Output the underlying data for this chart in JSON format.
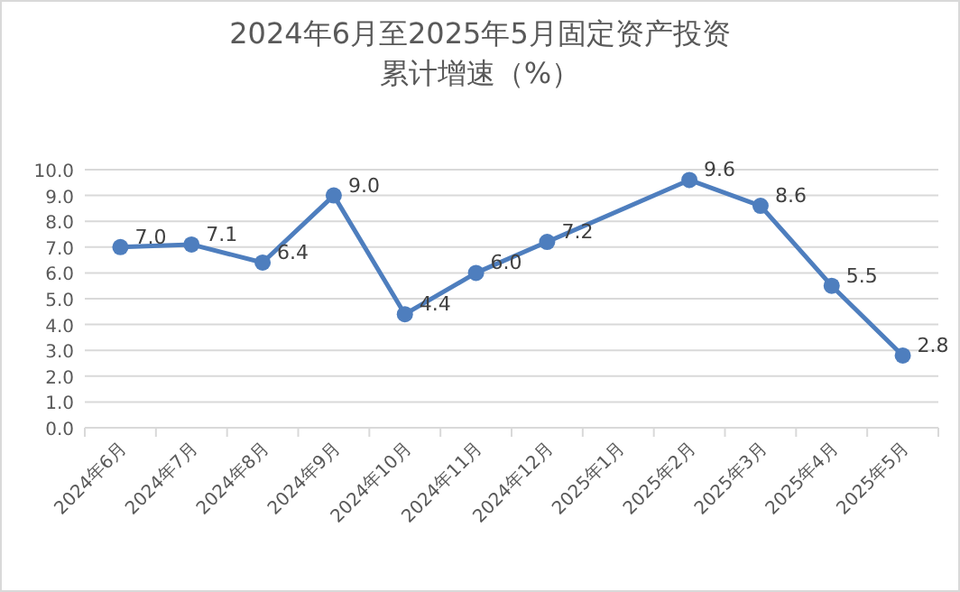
{
  "chart_data": {
    "type": "line",
    "title": "2024年6月至2025年5月固定资产投资累计增速（%）",
    "categories": [
      "2024年6月",
      "2024年7月",
      "2024年8月",
      "2024年9月",
      "2024年10月",
      "2024年11月",
      "2024年12月",
      "2025年1月",
      "2025年2月",
      "2025年3月",
      "2025年4月",
      "2025年5月"
    ],
    "series": [
      {
        "color": "#4e7ebe",
        "values": [
          7.0,
          7.1,
          6.4,
          9.0,
          4.4,
          6.0,
          7.2,
          null,
          9.6,
          8.6,
          5.5,
          2.8
        ],
        "value_labels": [
          "7.0",
          "7.1",
          "6.4",
          "9.0",
          "4.4",
          "6.0",
          "7.2",
          null,
          "9.6",
          "8.6",
          "5.5",
          "2.8"
        ]
      }
    ],
    "ylim": [
      0,
      10
    ],
    "yticks": [
      {
        "value": 0,
        "label": "0.0"
      },
      {
        "value": 1,
        "label": "1.0"
      },
      {
        "value": 2,
        "label": "2.0"
      },
      {
        "value": 3,
        "label": "3.0"
      },
      {
        "value": 4,
        "label": "4.0"
      },
      {
        "value": 5,
        "label": "5.0"
      },
      {
        "value": 6,
        "label": "6.0"
      },
      {
        "value": 7,
        "label": "7.0"
      },
      {
        "value": 8,
        "label": "8.0"
      },
      {
        "value": 9,
        "label": "9.0"
      },
      {
        "value": 10,
        "label": "10.0"
      }
    ],
    "grid": "y",
    "marker": "circle",
    "line_style": "solid"
  }
}
